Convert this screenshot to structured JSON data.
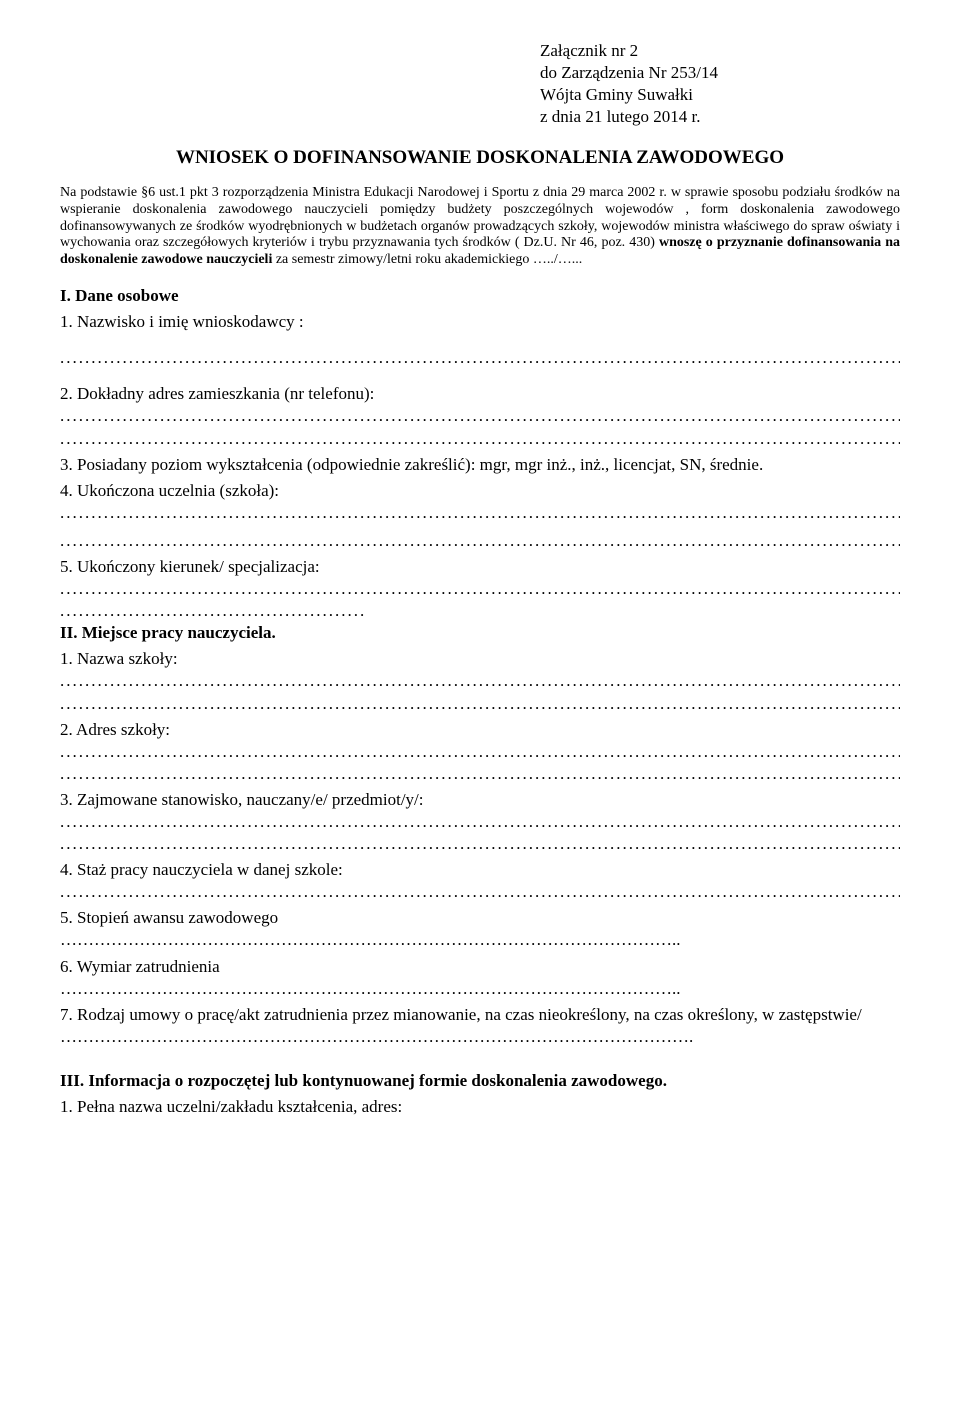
{
  "header": {
    "line1": "Załącznik nr 2",
    "line2": "do Zarządzenia Nr 253/14",
    "line3": "Wójta Gminy Suwałki",
    "line4": "z dnia  21 lutego 2014 r."
  },
  "title": "WNIOSEK O DOFINANSOWANIE DOSKONALENIA ZAWODOWEGO",
  "legal": {
    "intro": "Na podstawie §6 ust.1 pkt 3 rozporządzenia Ministra Edukacji Narodowej i Sportu z dnia 29 marca 2002 r. w sprawie sposobu podziału środków na wspieranie doskonalenia zawodowego nauczycieli pomiędzy budżety poszczególnych wojewodów , form doskonalenia zawodowego dofinansowywanych ze środków wyodrębnionych w budżetach organów prowadzących szkoły, wojewodów ministra właściwego do spraw oświaty i wychowania oraz szczegółowych kryteriów i trybu przyznawania tych środków ( Dz.U. Nr 46, poz. 430) ",
    "bold_part": "wnoszę  o przyznanie  dofinansowania  na doskonalenie  zawodowe  nauczycieli ",
    "tail": " za semestr zimowy/letni roku akademickiego …../…..."
  },
  "sectionI": {
    "heading": " I. Dane osobowe",
    "q1": "1. Nazwisko i imię wnioskodawcy :",
    "q2": "2. Dokładny adres zamieszkania (nr telefonu):",
    "q3": "3. Posiadany poziom wykształcenia (odpowiednie zakreślić): mgr, mgr inż., inż., licencjat, SN, średnie.",
    "q4": "4. Ukończona uczelnia (szkoła):",
    "q5": "5. Ukończony kierunek/ specjalizacja:"
  },
  "sectionII": {
    "heading": "II. Miejsce pracy nauczyciela.",
    "q1": "1. Nazwa szkoły:",
    "q2": "2. Adres szkoły:",
    "q3": "3. Zajmowane stanowisko, nauczany/e/ przedmiot/y/:",
    "q4": "4. Staż pracy nauczyciela w danej szkole:",
    "q5": "5. Stopień awansu zawodowego",
    "q6": "6. Wymiar zatrudnienia",
    "q7": "7. Rodzaj umowy o pracę/akt zatrudnienia przez mianowanie, na czas nieokreślony, na czas określony, w zastępstwie/"
  },
  "sectionIII": {
    "heading": "III. Informacja o rozpoczętej lub kontynuowanej formie doskonalenia zawodowego.",
    "q1": "1. Pełna nazwa uczelni/zakładu kształcenia, adres:"
  },
  "dots": {
    "long": "...................................................................................................................................................",
    "short": ".................................................",
    "ellipsis_line": "………………………………………………………………………………………………..",
    "ellipsis_line_end": "…………………………………………………………………………………………………."
  }
}
